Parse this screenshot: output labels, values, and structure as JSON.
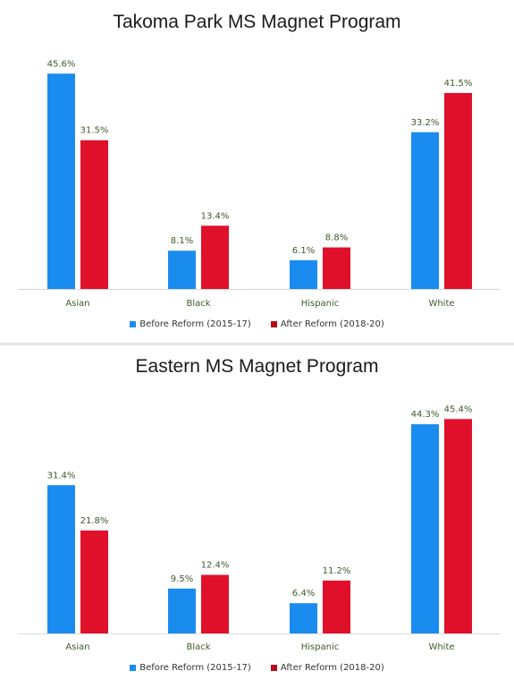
{
  "chart_data": [
    {
      "type": "bar",
      "title": "Takoma Park MS Magnet Program",
      "categories": [
        "Asian",
        "Black",
        "Hispanic",
        "White"
      ],
      "series": [
        {
          "name": "Before Reform (2015-17)",
          "values": [
            45.6,
            8.1,
            6.1,
            33.2
          ],
          "labels": [
            "45.6%",
            "8.1%",
            "6.1%",
            "33.2%"
          ],
          "color": "#1a8cf0"
        },
        {
          "name": "After Reform (2018-20)",
          "values": [
            31.5,
            13.4,
            8.8,
            41.5
          ],
          "labels": [
            "31.5%",
            "13.4%",
            "8.8%",
            "41.5%"
          ],
          "color": "#e0102a"
        }
      ],
      "ylim": [
        0,
        48.5
      ],
      "grid": false,
      "legend": "bottom"
    },
    {
      "type": "bar",
      "title": "Eastern MS Magnet Program",
      "categories": [
        "Asian",
        "Black",
        "Hispanic",
        "White"
      ],
      "series": [
        {
          "name": "Before Reform (2015-17)",
          "values": [
            31.4,
            9.5,
            6.4,
            44.3
          ],
          "labels": [
            "31.4%",
            "9.5%",
            "6.4%",
            "44.3%"
          ],
          "color": "#1a8cf0"
        },
        {
          "name": "After Reform (2018-20)",
          "values": [
            21.8,
            12.4,
            11.2,
            45.4
          ],
          "labels": [
            "21.8%",
            "12.4%",
            "11.2%",
            "45.4%"
          ],
          "color": "#e0102a"
        }
      ],
      "ylim": [
        0,
        48.5
      ],
      "grid": false,
      "legend": "bottom"
    }
  ]
}
